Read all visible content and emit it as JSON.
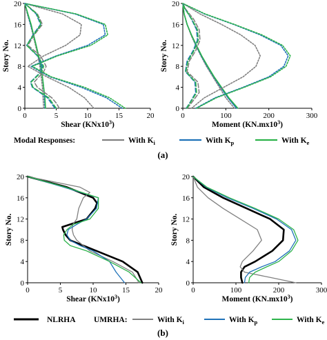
{
  "panel_labels": [
    "(a)",
    "(b)"
  ],
  "legend_a": {
    "title": "Modal Responses:",
    "items": [
      {
        "label": "With K",
        "sub": "i",
        "color": "#808080"
      },
      {
        "label": "With K",
        "sub": "p",
        "color": "#1f72b8"
      },
      {
        "label": "With K",
        "sub": "e",
        "color": "#2cb34a"
      }
    ]
  },
  "legend_b": {
    "first": {
      "label": "NLRHA",
      "color": "#000000"
    },
    "group_title": "UMRHA:",
    "items": [
      {
        "label": "With K",
        "sub": "i",
        "color": "#808080"
      },
      {
        "label": "With K",
        "sub": "p",
        "color": "#1f72b8"
      },
      {
        "label": "With K",
        "sub": "e",
        "color": "#2cb34a"
      }
    ]
  },
  "chart_data": [
    {
      "id": "a-shear",
      "type": "line",
      "xlabel": "Shear (KNx10",
      "xlabel_sup": "3",
      "xlabel_end": ")",
      "ylabel": "Story No.",
      "xlim": [
        0,
        20
      ],
      "ylim": [
        0,
        20
      ],
      "xticks": [
        0,
        5,
        10,
        15,
        20
      ],
      "yticks": [
        0,
        4,
        8,
        12,
        16,
        20
      ],
      "series": [
        {
          "mode": 1,
          "stiff": "Ki",
          "color": "#808080",
          "dash": "2,2",
          "y": [
            0,
            2,
            4,
            6,
            8,
            10,
            12,
            14,
            16,
            18,
            20
          ],
          "x": [
            3.0,
            2.9,
            2.8,
            2.6,
            2.4,
            2.1,
            1.7,
            1.3,
            0.9,
            0.4,
            0
          ]
        },
        {
          "mode": 1,
          "stiff": "Kp",
          "color": "#1f72b8",
          "dash": "2,2",
          "y": [
            0,
            2,
            4,
            6,
            8,
            10,
            12,
            14,
            16,
            18,
            20
          ],
          "x": [
            3.2,
            3.1,
            3.0,
            2.8,
            2.5,
            2.2,
            1.8,
            1.4,
            0.9,
            0.45,
            0
          ]
        },
        {
          "mode": 1,
          "stiff": "Ke",
          "color": "#2cb34a",
          "dash": "",
          "y": [
            0,
            2,
            4,
            6,
            8,
            10,
            12,
            14,
            16,
            18,
            20
          ],
          "x": [
            3.3,
            3.2,
            3.0,
            2.8,
            2.6,
            2.2,
            1.8,
            1.4,
            1.0,
            0.5,
            0
          ]
        },
        {
          "mode": 2,
          "stiff": "Ki",
          "color": "#808080",
          "dash": "6,3",
          "y": [
            0,
            1,
            2,
            4,
            5,
            7,
            8,
            10,
            12,
            14,
            16,
            18,
            20
          ],
          "x": [
            5.5,
            5.0,
            4.3,
            2.0,
            1.5,
            3.0,
            3.4,
            2.5,
            0.5,
            1.5,
            2.8,
            2.0,
            0
          ]
        },
        {
          "mode": 2,
          "stiff": "Kp",
          "color": "#1f72b8",
          "dash": "6,3",
          "y": [
            0,
            1,
            2,
            4,
            5,
            7,
            8,
            10,
            12,
            14,
            16,
            18,
            20
          ],
          "x": [
            4.8,
            4.2,
            3.6,
            1.2,
            0.9,
            2.6,
            2.8,
            2.0,
            0.3,
            1.3,
            2.5,
            1.8,
            0
          ]
        },
        {
          "mode": 2,
          "stiff": "Ke",
          "color": "#2cb34a",
          "dash": "6,3",
          "y": [
            0,
            1,
            2,
            4,
            5,
            7,
            8,
            10,
            12,
            14,
            16,
            18,
            20
          ],
          "x": [
            5.0,
            4.4,
            3.8,
            1.3,
            1.0,
            2.7,
            3.0,
            2.1,
            0.3,
            1.4,
            2.6,
            1.9,
            0
          ]
        },
        {
          "mode": 3,
          "stiff": "Ki",
          "color": "#808080",
          "dash": "2,2",
          "y": [
            0,
            2,
            4,
            6,
            8,
            10,
            12,
            14,
            16,
            18,
            20
          ],
          "x": [
            11.0,
            9.5,
            7.0,
            3.5,
            0.5,
            3.0,
            6.5,
            8.8,
            9.0,
            6.0,
            0
          ]
        },
        {
          "mode": 3,
          "stiff": "Kp",
          "color": "#1f72b8",
          "dash": "2,2",
          "y": [
            0,
            2,
            4,
            6,
            8,
            10,
            12,
            14,
            16,
            18,
            20
          ],
          "x": [
            15.5,
            13.0,
            9.0,
            4.0,
            1.0,
            5.0,
            10.0,
            12.8,
            12.5,
            8.0,
            0
          ]
        },
        {
          "mode": 3,
          "stiff": "Ke",
          "color": "#2cb34a",
          "dash": "2,2",
          "y": [
            0,
            2,
            4,
            6,
            8,
            10,
            12,
            14,
            16,
            18,
            20
          ],
          "x": [
            16.0,
            13.5,
            9.5,
            4.2,
            1.2,
            5.2,
            10.5,
            13.2,
            12.8,
            8.2,
            0
          ]
        }
      ]
    },
    {
      "id": "a-moment",
      "type": "line",
      "xlabel": "Moment (KN.mx10",
      "xlabel_sup": "3",
      "xlabel_end": ")",
      "ylabel": "Story No.",
      "xlim": [
        0,
        300
      ],
      "ylim": [
        0,
        20
      ],
      "xticks": [
        0,
        100,
        200,
        300
      ],
      "yticks": [
        0,
        4,
        8,
        12,
        16,
        20
      ],
      "series": [
        {
          "mode": 1,
          "stiff": "Ki",
          "color": "#808080",
          "dash": "2,2",
          "y": [
            0,
            2,
            4,
            6,
            8,
            10,
            12,
            14,
            16,
            18,
            20
          ],
          "x": [
            120,
            100,
            85,
            70,
            55,
            42,
            30,
            19,
            10,
            3,
            0
          ]
        },
        {
          "mode": 1,
          "stiff": "Kp",
          "color": "#1f72b8",
          "dash": "",
          "y": [
            0,
            2,
            4,
            6,
            8,
            10,
            12,
            14,
            16,
            18,
            20
          ],
          "x": [
            125,
            105,
            88,
            72,
            57,
            43,
            31,
            20,
            10,
            3,
            0
          ]
        },
        {
          "mode": 1,
          "stiff": "Ke",
          "color": "#2cb34a",
          "dash": "",
          "y": [
            0,
            2,
            4,
            6,
            8,
            10,
            12,
            14,
            16,
            18,
            20
          ],
          "x": [
            128,
            107,
            90,
            73,
            58,
            44,
            32,
            20,
            10,
            3,
            0
          ]
        },
        {
          "mode": 2,
          "stiff": "Ki",
          "color": "#808080",
          "dash": "6,3",
          "y": [
            0,
            1,
            3,
            5,
            7,
            9,
            11,
            13,
            15,
            17,
            19,
            20
          ],
          "x": [
            10,
            20,
            38,
            35,
            10,
            15,
            30,
            40,
            38,
            25,
            6,
            0
          ]
        },
        {
          "mode": 2,
          "stiff": "Kp",
          "color": "#1f72b8",
          "dash": "6,3",
          "y": [
            0,
            1,
            3,
            5,
            7,
            9,
            11,
            13,
            15,
            17,
            19,
            20
          ],
          "x": [
            8,
            16,
            30,
            28,
            6,
            10,
            24,
            34,
            32,
            20,
            5,
            0
          ]
        },
        {
          "mode": 2,
          "stiff": "Ke",
          "color": "#2cb34a",
          "dash": "6,3",
          "y": [
            0,
            1,
            3,
            5,
            7,
            9,
            11,
            13,
            15,
            17,
            19,
            20
          ],
          "x": [
            9,
            17,
            32,
            30,
            7,
            12,
            26,
            36,
            34,
            21,
            5,
            0
          ]
        },
        {
          "mode": 3,
          "stiff": "Ki",
          "color": "#808080",
          "dash": "2,2",
          "y": [
            0,
            2,
            4,
            6,
            8,
            10,
            12,
            14,
            16,
            18,
            20
          ],
          "x": [
            20,
            50,
            95,
            140,
            170,
            180,
            168,
            135,
            90,
            40,
            0
          ]
        },
        {
          "mode": 3,
          "stiff": "Kp",
          "color": "#1f72b8",
          "dash": "2,2",
          "y": [
            0,
            2,
            4,
            6,
            8,
            10,
            12,
            14,
            16,
            18,
            20
          ],
          "x": [
            30,
            75,
            140,
            200,
            235,
            245,
            228,
            180,
            118,
            50,
            0
          ]
        },
        {
          "mode": 3,
          "stiff": "Ke",
          "color": "#2cb34a",
          "dash": "2,2",
          "y": [
            0,
            2,
            4,
            6,
            8,
            10,
            12,
            14,
            16,
            18,
            20
          ],
          "x": [
            32,
            78,
            143,
            204,
            240,
            250,
            232,
            184,
            120,
            52,
            0
          ]
        }
      ]
    },
    {
      "id": "b-shear",
      "type": "line",
      "xlabel": "Shear (KNx10",
      "xlabel_sup": "3",
      "xlabel_end": ")",
      "ylabel": "Story No.",
      "xlim": [
        0,
        20
      ],
      "ylim": [
        0,
        20
      ],
      "xticks": [
        0,
        5,
        10,
        15,
        20
      ],
      "yticks": [
        0,
        4,
        8,
        12,
        16,
        20
      ],
      "series": [
        {
          "name": "NLRHA",
          "color": "#000000",
          "width": 2.6,
          "y": [
            0,
            2,
            4,
            6,
            8,
            9,
            10,
            10.5,
            12,
            14,
            15,
            16,
            18,
            20
          ],
          "x": [
            17.5,
            16.8,
            14.5,
            10.5,
            6.5,
            5.8,
            5.4,
            5.3,
            9.0,
            10.3,
            10.6,
            10.0,
            6.0,
            0
          ]
        },
        {
          "name": "Ki",
          "color": "#808080",
          "width": 1.3,
          "y": [
            0,
            2,
            4,
            6,
            8,
            9,
            10,
            11,
            12,
            14,
            16,
            17,
            18,
            20
          ],
          "x": [
            17.0,
            16.0,
            13.0,
            9.5,
            7.5,
            7.0,
            6.8,
            6.9,
            7.5,
            7.8,
            8.5,
            9.5,
            8.0,
            0
          ]
        },
        {
          "name": "Kp",
          "color": "#1f72b8",
          "width": 1.3,
          "y": [
            0,
            2,
            4,
            6,
            7,
            8,
            9,
            10,
            11,
            12,
            14,
            16,
            18,
            20
          ],
          "x": [
            14.8,
            13.5,
            12.5,
            10.0,
            8.0,
            6.5,
            6.0,
            6.2,
            7.5,
            9.0,
            10.5,
            10.8,
            5.5,
            0
          ]
        },
        {
          "name": "Ke",
          "color": "#2cb34a",
          "width": 1.3,
          "y": [
            0,
            2,
            4,
            6,
            7,
            8,
            9,
            10,
            11,
            12,
            14,
            16,
            18,
            20
          ],
          "x": [
            17.3,
            15.5,
            12.5,
            9.0,
            6.5,
            5.6,
            5.5,
            6.0,
            7.0,
            9.5,
            10.8,
            10.8,
            5.8,
            0
          ]
        }
      ]
    },
    {
      "id": "b-moment",
      "type": "line",
      "xlabel": "Moment (KN.mx10",
      "xlabel_sup": "3",
      "xlabel_end": ")",
      "ylabel": "Story No.",
      "xlim": [
        0,
        300
      ],
      "ylim": [
        0,
        20
      ],
      "xticks": [
        0,
        100,
        200,
        300
      ],
      "yticks": [
        0,
        4,
        8,
        12,
        16,
        20
      ],
      "series": [
        {
          "name": "NLRHA",
          "color": "#000000",
          "width": 2.6,
          "y": [
            0,
            1,
            2,
            3,
            4,
            6,
            8,
            10,
            12,
            14,
            16,
            18,
            20
          ],
          "x": [
            115,
            112,
            112,
            120,
            145,
            185,
            210,
            212,
            180,
            125,
            70,
            25,
            0
          ]
        },
        {
          "name": "Ki",
          "color": "#808080",
          "width": 1.3,
          "y": [
            0,
            1,
            2,
            3,
            4,
            6,
            8,
            10,
            12,
            14,
            16,
            18,
            20
          ],
          "x": [
            240,
            180,
            120,
            110,
            115,
            140,
            160,
            150,
            110,
            70,
            35,
            10,
            0
          ]
        },
        {
          "name": "Kp",
          "color": "#1f72b8",
          "width": 1.3,
          "y": [
            0,
            1,
            2,
            3,
            4,
            6,
            8,
            10,
            12,
            14,
            16,
            18,
            20
          ],
          "x": [
            120,
            122,
            132,
            160,
            192,
            225,
            240,
            230,
            195,
            140,
            80,
            30,
            0
          ]
        },
        {
          "name": "Ke",
          "color": "#2cb34a",
          "width": 1.3,
          "y": [
            0,
            1,
            2,
            3,
            4,
            6,
            8,
            10,
            12,
            14,
            16,
            18,
            20
          ],
          "x": [
            130,
            132,
            145,
            172,
            200,
            230,
            245,
            235,
            200,
            145,
            85,
            32,
            0
          ]
        }
      ]
    }
  ]
}
